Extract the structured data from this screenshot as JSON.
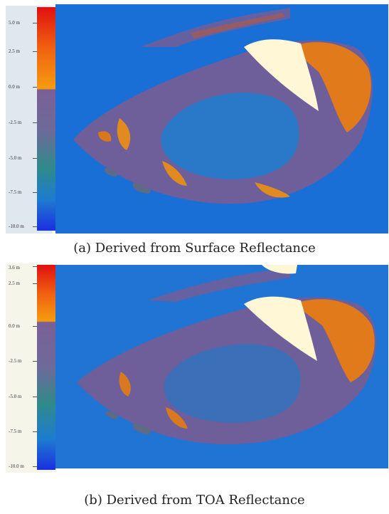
{
  "panels": [
    {
      "caption": "(a) Derived from Surface Reflectance",
      "legend_ticks": [
        "5.0 m",
        "2.5 m",
        "0.0 m",
        "-2.5 m",
        "-5.0 m",
        "-7.5 m",
        "-10.0 m"
      ]
    },
    {
      "caption": "(b) Derived from TOA Reflectance",
      "legend_ticks": [
        "3.6 m",
        "2.5 m",
        "0.0 m",
        "-2.5 m",
        "-5.0 m",
        "-7.5 m",
        "-10.0 m"
      ]
    }
  ],
  "colors": {
    "deep_water": "#1a6fd6",
    "mid": "#6e5f9a",
    "shallow": "#e07a1a",
    "land": "#fff7d6"
  }
}
